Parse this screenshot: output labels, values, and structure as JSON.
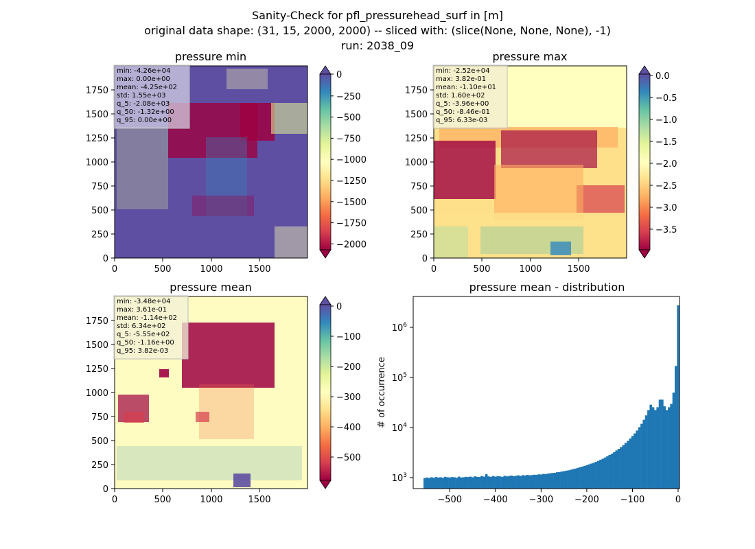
{
  "figure": {
    "title_lines": [
      "Sanity-Check for pfl_pressurehead_surf in [m]",
      "original data shape: (31, 15, 2000, 2000) -- sliced with: (slice(None, None, None), -1)",
      "run: 2038_09"
    ]
  },
  "chart_data": [
    {
      "type": "heatmap",
      "title": "pressure min",
      "xlim": [
        0,
        2000
      ],
      "ylim": [
        0,
        2000
      ],
      "xticks": [
        "0",
        "500",
        "1000",
        "1500"
      ],
      "yticks": [
        "0",
        "250",
        "500",
        "750",
        "1000",
        "1250",
        "1500",
        "1750"
      ],
      "colormap": "Spectral",
      "colorbar": {
        "range": [
          -2150,
          0
        ],
        "ticks": [
          "0",
          "−250",
          "−500",
          "−750",
          "−1000",
          "−1250",
          "−1500",
          "−1750",
          "−2000"
        ],
        "extend": "both"
      },
      "stats": [
        "min: -4.26e+04",
        "max: 0.00e+00",
        "mean: -4.25e+02",
        "std: 1.55e+03",
        "q_5: -2.08e+03",
        "q_50: -1.32e+00",
        "q_95: 0.00e+00"
      ]
    },
    {
      "type": "heatmap",
      "title": "pressure max",
      "xlim": [
        0,
        2000
      ],
      "ylim": [
        0,
        2000
      ],
      "xticks": [
        "0",
        "500",
        "1000",
        "1500"
      ],
      "yticks": [
        "0",
        "250",
        "500",
        "750",
        "1000",
        "1250",
        "1500",
        "1750"
      ],
      "colormap": "Spectral",
      "colorbar": {
        "range": [
          -4.0,
          0.0
        ],
        "ticks": [
          "0.0",
          "−0.5",
          "−1.0",
          "−1.5",
          "−2.0",
          "−2.5",
          "−3.0",
          "−3.5"
        ],
        "extend": "both"
      },
      "stats": [
        "min: -2.52e+04",
        "max: 3.82e-01",
        "mean: -1.10e+01",
        "std: 1.60e+02",
        "q_5: -3.96e+00",
        "q_50: -8.46e-01",
        "q_95: 6.33e-03"
      ]
    },
    {
      "type": "heatmap",
      "title": "pressure mean",
      "xlim": [
        0,
        2000
      ],
      "ylim": [
        0,
        2000
      ],
      "xticks": [
        "0",
        "500",
        "1000",
        "1500"
      ],
      "yticks": [
        "0",
        "250",
        "500",
        "750",
        "1000",
        "1250",
        "1500",
        "1750"
      ],
      "colormap": "Spectral",
      "colorbar": {
        "range": [
          -580,
          0
        ],
        "ticks": [
          "0",
          "−100",
          "−200",
          "−300",
          "−400",
          "−500"
        ],
        "extend": "both"
      },
      "stats": [
        "min: -3.48e+04",
        "max: 3.61e-01",
        "mean: -1.14e+02",
        "std: 6.34e+02",
        "q_5: -5.55e+02",
        "q_50: -1.16e+00",
        "q_95: 3.82e-03"
      ]
    },
    {
      "type": "bar",
      "title": "pressure mean - distribution",
      "ylabel": "# of occurrence",
      "yscale": "log",
      "xlim": [
        -580,
        3
      ],
      "ylim": [
        570,
        3900000
      ],
      "xticks": [
        "−500",
        "−400",
        "−300",
        "−200",
        "−100",
        "0"
      ],
      "yticks": [
        "10^3",
        "10^4",
        "10^5",
        "10^6"
      ],
      "bar_color": "#1f77b4",
      "bins": {
        "x": [
          -555,
          -550,
          -545,
          -540,
          -535,
          -530,
          -525,
          -520,
          -515,
          -510,
          -505,
          -500,
          -495,
          -490,
          -485,
          -480,
          -475,
          -470,
          -465,
          -460,
          -455,
          -450,
          -445,
          -440,
          -435,
          -430,
          -425,
          -420,
          -415,
          -410,
          -405,
          -400,
          -395,
          -390,
          -385,
          -380,
          -375,
          -370,
          -365,
          -360,
          -355,
          -350,
          -345,
          -340,
          -335,
          -330,
          -325,
          -320,
          -315,
          -310,
          -305,
          -300,
          -295,
          -290,
          -285,
          -280,
          -275,
          -270,
          -265,
          -260,
          -255,
          -250,
          -245,
          -240,
          -235,
          -230,
          -225,
          -220,
          -215,
          -210,
          -205,
          -200,
          -195,
          -190,
          -185,
          -180,
          -175,
          -170,
          -165,
          -160,
          -155,
          -150,
          -145,
          -140,
          -135,
          -130,
          -125,
          -120,
          -115,
          -110,
          -105,
          -100,
          -95,
          -90,
          -85,
          -80,
          -75,
          -70,
          -65,
          -60,
          -55,
          -50,
          -45,
          -40,
          -35,
          -30,
          -25,
          -20,
          -15,
          -10,
          -5,
          0
        ],
        "counts": [
          920,
          950,
          930,
          960,
          940,
          970,
          950,
          960,
          940,
          980,
          960,
          950,
          970,
          960,
          940,
          990,
          950,
          960,
          980,
          970,
          990,
          960,
          1000,
          980,
          970,
          1020,
          990,
          1110,
          1000,
          980,
          1020,
          990,
          1010,
          1000,
          980,
          1030,
          1000,
          1020,
          1040,
          1010,
          1030,
          1050,
          1020,
          1060,
          1040,
          1070,
          1050,
          1060,
          1080,
          1070,
          1100,
          1090,
          1120,
          1110,
          1140,
          1150,
          1170,
          1180,
          1210,
          1220,
          1250,
          1270,
          1300,
          1320,
          1360,
          1400,
          1430,
          1480,
          1520,
          1570,
          1620,
          1680,
          1740,
          1800,
          1870,
          1950,
          2040,
          2150,
          2250,
          2380,
          2520,
          2680,
          2850,
          3050,
          3300,
          3550,
          3850,
          4200,
          4650,
          5100,
          5700,
          6400,
          7200,
          8200,
          9600,
          11200,
          13500,
          16500,
          21000,
          27000,
          24000,
          21000,
          24000,
          34000,
          34000,
          25000,
          21000,
          24000,
          28000,
          47000,
          160000,
          2600000
        ]
      }
    }
  ]
}
